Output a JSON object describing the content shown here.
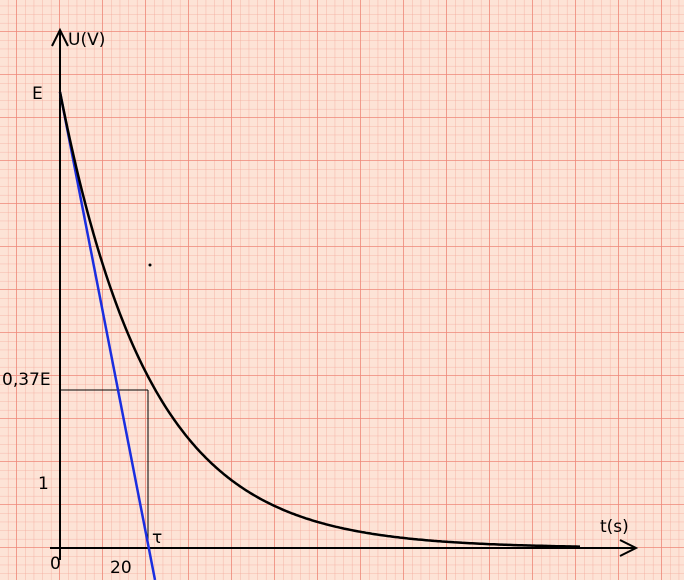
{
  "axes": {
    "y_label": "U(V)",
    "x_label": "t(s)"
  },
  "labels": {
    "e": "E",
    "level": "0,37E",
    "one": "1",
    "origin": "0",
    "twenty": "20",
    "tau": "τ"
  }
}
